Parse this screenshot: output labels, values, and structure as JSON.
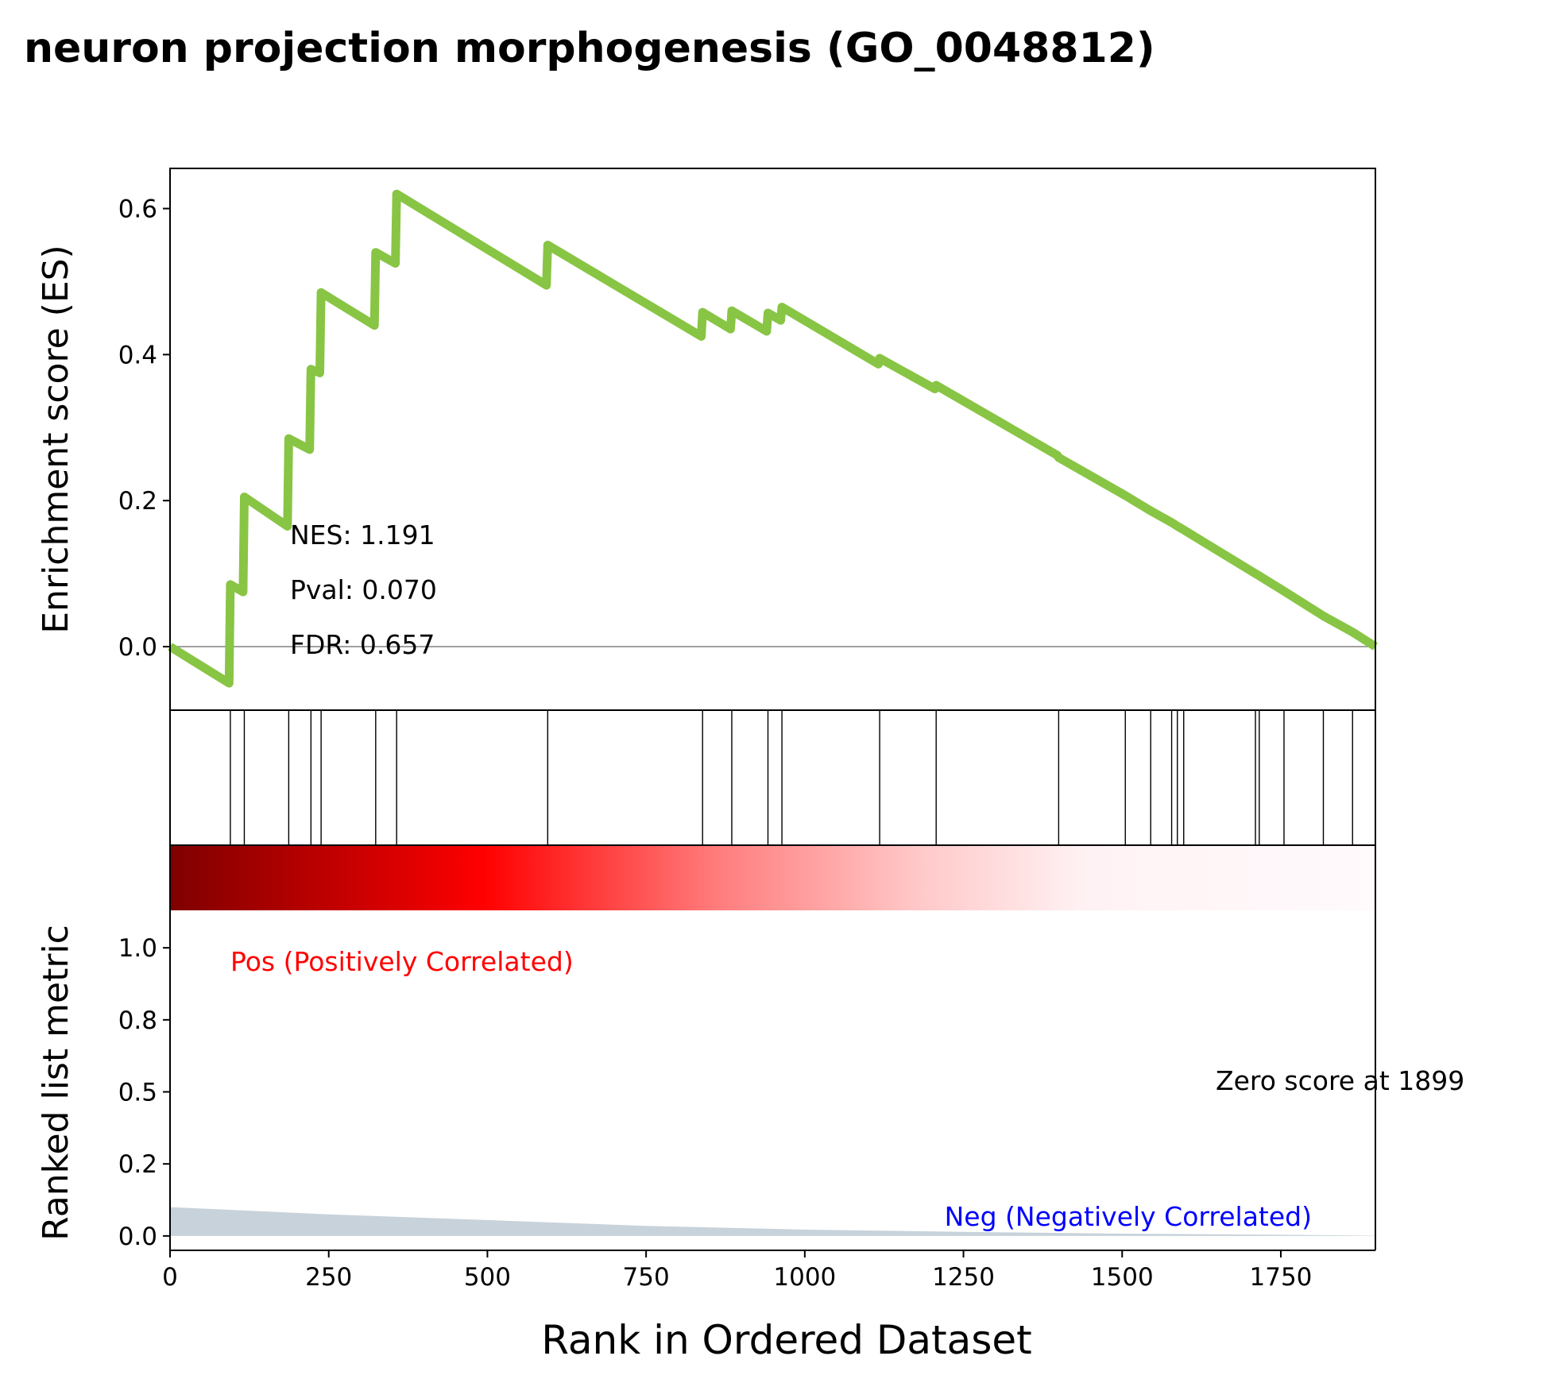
{
  "chart_data": {
    "type": "line",
    "title": "neuron projection morphogenesis (GO_0048812)",
    "xlabel": "Rank in Ordered Dataset",
    "xlim": [
      0,
      1899
    ],
    "x_ticks": [
      0,
      250,
      500,
      750,
      1000,
      1250,
      1500,
      1750
    ],
    "x_tick_labels": [
      "0",
      "250",
      "500",
      "750",
      "1000",
      "1250",
      "1500",
      "1750"
    ],
    "es_panel": {
      "ylabel": "Enrichment score (ES)",
      "ylim": [
        -0.087,
        0.655
      ],
      "y_ticks": [
        0.0,
        0.2,
        0.4,
        0.6
      ],
      "y_tick_labels": [
        "0.0",
        "0.2",
        "0.4",
        "0.6"
      ],
      "line_color": "#88c544",
      "zero_line": true,
      "points": [
        [
          0,
          0.0
        ],
        [
          93,
          -0.05
        ],
        [
          95,
          0.085
        ],
        [
          115,
          0.075
        ],
        [
          117,
          0.205
        ],
        [
          185,
          0.165
        ],
        [
          187,
          0.285
        ],
        [
          220,
          0.27
        ],
        [
          222,
          0.38
        ],
        [
          236,
          0.375
        ],
        [
          238,
          0.485
        ],
        [
          322,
          0.44
        ],
        [
          324,
          0.54
        ],
        [
          355,
          0.525
        ],
        [
          357,
          0.62
        ],
        [
          593,
          0.495
        ],
        [
          595,
          0.55
        ],
        [
          837,
          0.425
        ],
        [
          839,
          0.458
        ],
        [
          883,
          0.435
        ],
        [
          885,
          0.46
        ],
        [
          940,
          0.432
        ],
        [
          942,
          0.457
        ],
        [
          962,
          0.447
        ],
        [
          964,
          0.465
        ],
        [
          1116,
          0.387
        ],
        [
          1118,
          0.395
        ],
        [
          1205,
          0.353
        ],
        [
          1207,
          0.358
        ],
        [
          1398,
          0.262
        ],
        [
          1400,
          0.259
        ],
        [
          1505,
          0.207
        ],
        [
          1545,
          0.186
        ],
        [
          1578,
          0.17
        ],
        [
          1587,
          0.165
        ],
        [
          1597,
          0.16
        ],
        [
          1710,
          0.1
        ],
        [
          1716,
          0.097
        ],
        [
          1755,
          0.076
        ],
        [
          1817,
          0.042
        ],
        [
          1863,
          0.02
        ],
        [
          1899,
          0.0
        ]
      ],
      "annotations": [
        "NES: 1.191",
        "Pval: 0.070",
        "FDR: 0.657"
      ]
    },
    "hits_panel": {
      "hit_positions": [
        95,
        117,
        187,
        222,
        238,
        324,
        357,
        595,
        839,
        885,
        942,
        964,
        1118,
        1207,
        1400,
        1505,
        1545,
        1578,
        1587,
        1597,
        1710,
        1716,
        1755,
        1817,
        1863
      ]
    },
    "rank_panel": {
      "ylabel": "Ranked list metric",
      "ylim": [
        -0.05,
        1.13
      ],
      "y_ticks": [
        0.0,
        0.25,
        0.5,
        0.75,
        1.0
      ],
      "y_tick_labels": [
        "0.0",
        "0.2",
        "0.5",
        "0.8",
        "1.0"
      ],
      "fill_color": "#c8d2da",
      "metric_points": [
        [
          0,
          0.1
        ],
        [
          250,
          0.075
        ],
        [
          500,
          0.055
        ],
        [
          750,
          0.035
        ],
        [
          1000,
          0.022
        ],
        [
          1250,
          0.014
        ],
        [
          1500,
          0.008
        ],
        [
          1750,
          0.004
        ],
        [
          1899,
          0.001
        ]
      ],
      "pos_label": "Pos (Positively Correlated)",
      "neg_label": "Neg (Negatively Correlated)",
      "zero_score_label": "Zero score at 1899",
      "zero_score_rank": 1899,
      "pos_color": "#ff0000",
      "neg_color": "#0000ff",
      "heatmap_colors": [
        "#7f0000",
        "#e00000",
        "#ff0000",
        "#ff8080",
        "#ffd8d8",
        "#fff8fa"
      ]
    }
  }
}
